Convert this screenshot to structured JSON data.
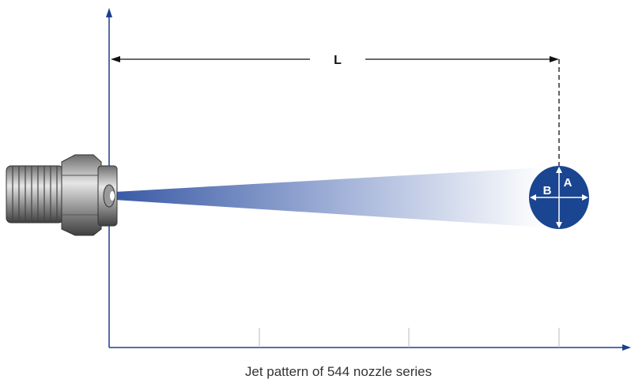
{
  "diagram": {
    "dimension_label": "L",
    "spot_labels": {
      "b": "B",
      "a": "A"
    },
    "caption": "Jet pattern of 544 nozzle series"
  }
}
